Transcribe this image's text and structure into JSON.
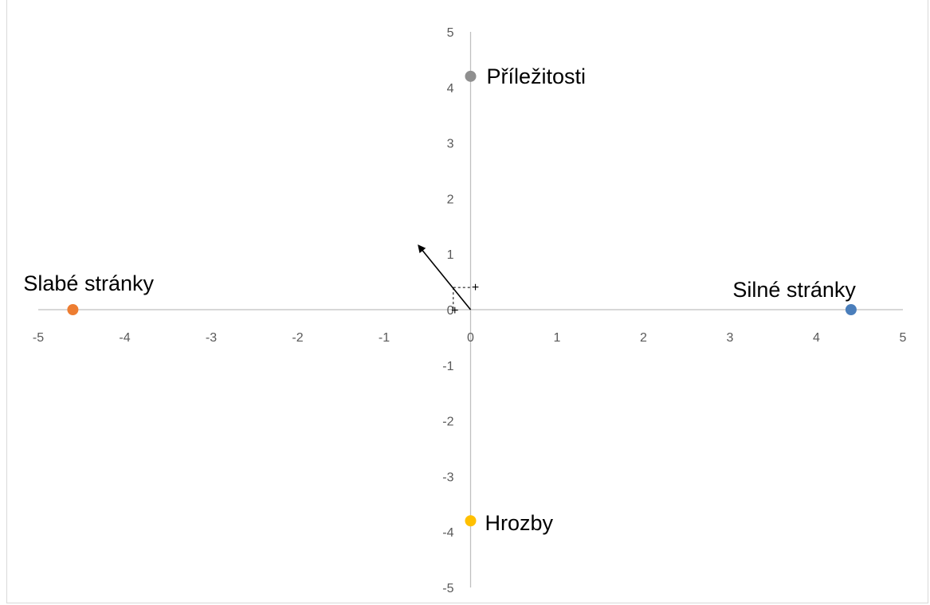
{
  "chart_data": {
    "type": "scatter",
    "title": "",
    "xlabel": "",
    "ylabel": "",
    "xlim": [
      -5,
      5
    ],
    "ylim": [
      -5,
      5
    ],
    "x_ticks": [
      -5,
      -4,
      -3,
      -2,
      -1,
      0,
      1,
      2,
      3,
      4,
      5
    ],
    "y_ticks": [
      -5,
      -4,
      -3,
      -2,
      -1,
      0,
      1,
      2,
      3,
      4,
      5
    ],
    "grid": false,
    "legend": "none",
    "points": [
      {
        "label": "Silné stránky",
        "x": 4.4,
        "y": 0,
        "color": "#4a7ebb"
      },
      {
        "label": "Slabé stránky",
        "x": -4.6,
        "y": 0,
        "color": "#ed7d31"
      },
      {
        "label": "Příležitosti",
        "x": 0,
        "y": 4.2,
        "color": "#8f8f8f"
      },
      {
        "label": "Hrozby",
        "x": 0,
        "y": -3.8,
        "color": "#ffc000"
      }
    ],
    "vector": {
      "from": [
        0,
        0
      ],
      "to": [
        -0.6,
        1.15
      ]
    },
    "vector_projection": {
      "x": -0.2,
      "y": 0.4
    },
    "annotations": [
      "+",
      "+"
    ],
    "axis_color": "#bfbfbf"
  }
}
